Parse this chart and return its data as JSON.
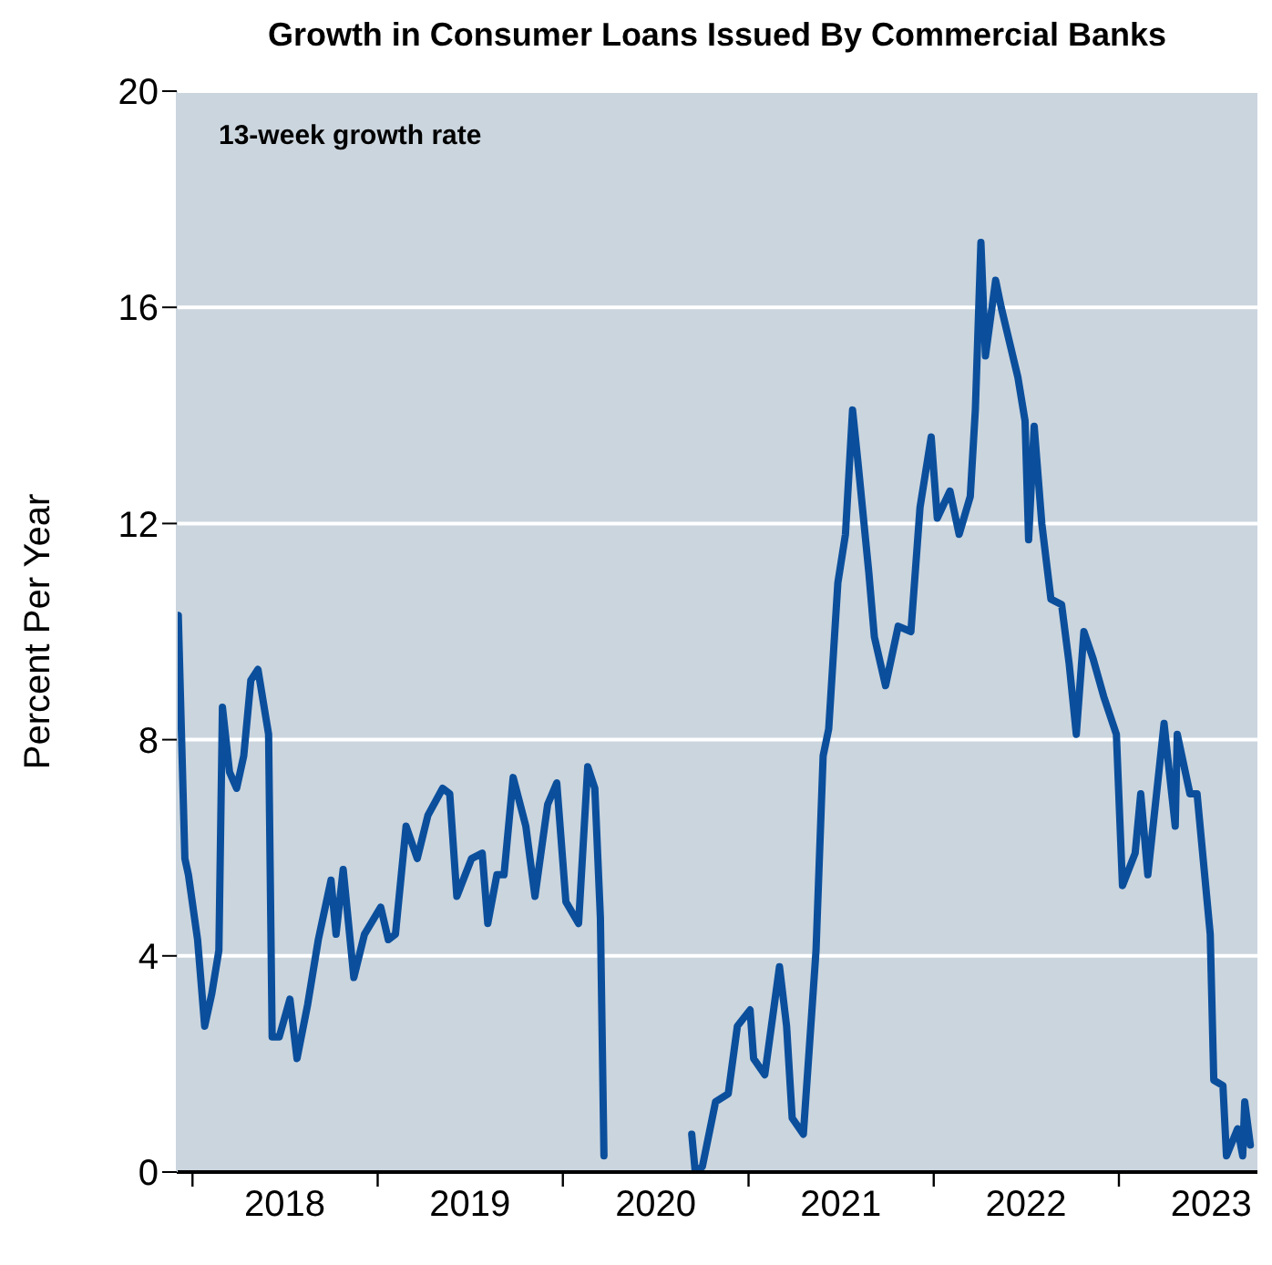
{
  "chart_data": {
    "type": "line",
    "title": "Growth in Consumer Loans Issued By Commercial Banks",
    "ylabel": "Percent Per Year",
    "annotations": [
      "13-week growth rate"
    ],
    "x": [
      "2017-12-01",
      "2017-12-04",
      "2017-12-10",
      "2017-12-17",
      "2017-12-24",
      "2018-01-11",
      "2018-01-25",
      "2018-02-08",
      "2018-02-22",
      "2018-03-01",
      "2018-03-15",
      "2018-03-29",
      "2018-04-12",
      "2018-04-26",
      "2018-05-10",
      "2018-05-31",
      "2018-06-07",
      "2018-06-21",
      "2018-07-12",
      "2018-07-26",
      "2018-08-16",
      "2018-09-06",
      "2018-10-01",
      "2018-10-11",
      "2018-10-25",
      "2018-11-15",
      "2018-12-06",
      "2019-01-07",
      "2019-01-22",
      "2019-02-05",
      "2019-02-26",
      "2019-03-20",
      "2019-04-10",
      "2019-05-09",
      "2019-05-23",
      "2019-06-06",
      "2019-07-05",
      "2019-07-26",
      "2019-08-06",
      "2019-08-24",
      "2019-09-07",
      "2019-09-25",
      "2019-10-20",
      "2019-11-07",
      "2019-12-02",
      "2019-12-20",
      "2020-01-07",
      "2020-02-01",
      "2020-02-19",
      "2020-03-04",
      "2020-03-15",
      "2020-03-22",
      "2020-05-15",
      "2020-09-11",
      "2020-09-18",
      "2020-10-02",
      "2020-10-28",
      "2020-11-22",
      "2020-12-10",
      "2021-01-04",
      "2021-01-11",
      "2021-02-02",
      "2021-03-03",
      "2021-03-17",
      "2021-03-28",
      "2021-04-19",
      "2021-05-14",
      "2021-05-28",
      "2021-06-08",
      "2021-06-26",
      "2021-07-11",
      "2021-07-25",
      "2021-08-05",
      "2021-08-26",
      "2021-09-06",
      "2021-09-28",
      "2021-10-23",
      "2021-11-17",
      "2021-12-05",
      "2021-12-27",
      "2022-01-08",
      "2022-02-02",
      "2022-02-20",
      "2022-03-14",
      "2022-03-24",
      "2022-04-04",
      "2022-04-13",
      "2022-05-03",
      "2022-05-14",
      "2022-06-16",
      "2022-06-30",
      "2022-07-07",
      "2022-07-18",
      "2022-08-02",
      "2022-08-20",
      "2022-09-10",
      "2022-09-25",
      "2022-10-09",
      "2022-10-24",
      "2022-11-11",
      "2022-12-02",
      "2022-12-27",
      "2023-01-08",
      "2023-02-02",
      "2023-02-13",
      "2023-02-27",
      "2023-03-31",
      "2023-04-22",
      "2023-04-26",
      "2023-05-21",
      "2023-06-04",
      "2023-06-30",
      "2023-07-07",
      "2023-07-25",
      "2023-08-01",
      "2023-08-23",
      "2023-09-02",
      "2023-09-06",
      "2023-09-17"
    ],
    "series": [
      {
        "color": "#0b4f9c",
        "values": [
          10.1,
          10.3,
          8.2,
          5.8,
          5.5,
          4.3,
          2.7,
          3.3,
          4.1,
          8.6,
          7.4,
          7.1,
          7.7,
          9.1,
          9.3,
          8.1,
          2.5,
          2.5,
          3.2,
          2.1,
          3.1,
          4.3,
          5.4,
          4.4,
          5.6,
          3.6,
          4.4,
          4.9,
          4.3,
          4.4,
          6.4,
          5.8,
          6.6,
          7.1,
          7.0,
          5.1,
          5.8,
          5.9,
          4.6,
          5.5,
          5.5,
          7.3,
          6.4,
          5.1,
          6.8,
          7.2,
          5.0,
          4.6,
          7.5,
          7.1,
          4.7,
          0.3,
          null,
          0.7,
          0.0,
          0.1,
          1.3,
          1.45,
          2.7,
          3.0,
          2.1,
          1.8,
          3.8,
          2.7,
          1.0,
          0.7,
          4.1,
          7.7,
          8.2,
          10.9,
          11.8,
          14.1,
          13.1,
          11.1,
          9.9,
          9.0,
          10.1,
          10.0,
          12.3,
          13.6,
          12.1,
          12.6,
          11.8,
          12.5,
          14.1,
          17.2,
          15.1,
          16.5,
          16.0,
          14.7,
          13.9,
          11.7,
          13.8,
          12.0,
          10.6,
          10.5,
          9.4,
          8.1,
          10.0,
          9.5,
          8.8,
          8.1,
          5.3,
          5.9,
          7.0,
          5.5,
          8.3,
          6.4,
          8.1,
          7.0,
          7.0,
          4.4,
          1.7,
          1.6,
          0.3,
          0.8,
          0.3,
          1.3,
          0.5
        ]
      }
    ],
    "xlim": [
      "2017-12-01",
      "2023-10-01"
    ],
    "xticks": [
      {
        "value": "2018-01-01",
        "label": null
      },
      {
        "value": "2018-07-02",
        "label": "2018"
      },
      {
        "value": "2019-01-01",
        "label": null
      },
      {
        "value": "2019-07-02",
        "label": "2019"
      },
      {
        "value": "2020-01-01",
        "label": null
      },
      {
        "value": "2020-07-02",
        "label": "2020"
      },
      {
        "value": "2021-01-01",
        "label": null
      },
      {
        "value": "2021-07-02",
        "label": "2021"
      },
      {
        "value": "2022-01-01",
        "label": null
      },
      {
        "value": "2022-07-02",
        "label": "2022"
      },
      {
        "value": "2023-01-01",
        "label": null
      },
      {
        "value": "2023-07-02",
        "label": "2023"
      }
    ],
    "ylim": [
      0,
      20
    ],
    "yticks": [
      0,
      4,
      8,
      12,
      16,
      20
    ],
    "grid": "y",
    "line_style": "solid",
    "marker": "none"
  }
}
